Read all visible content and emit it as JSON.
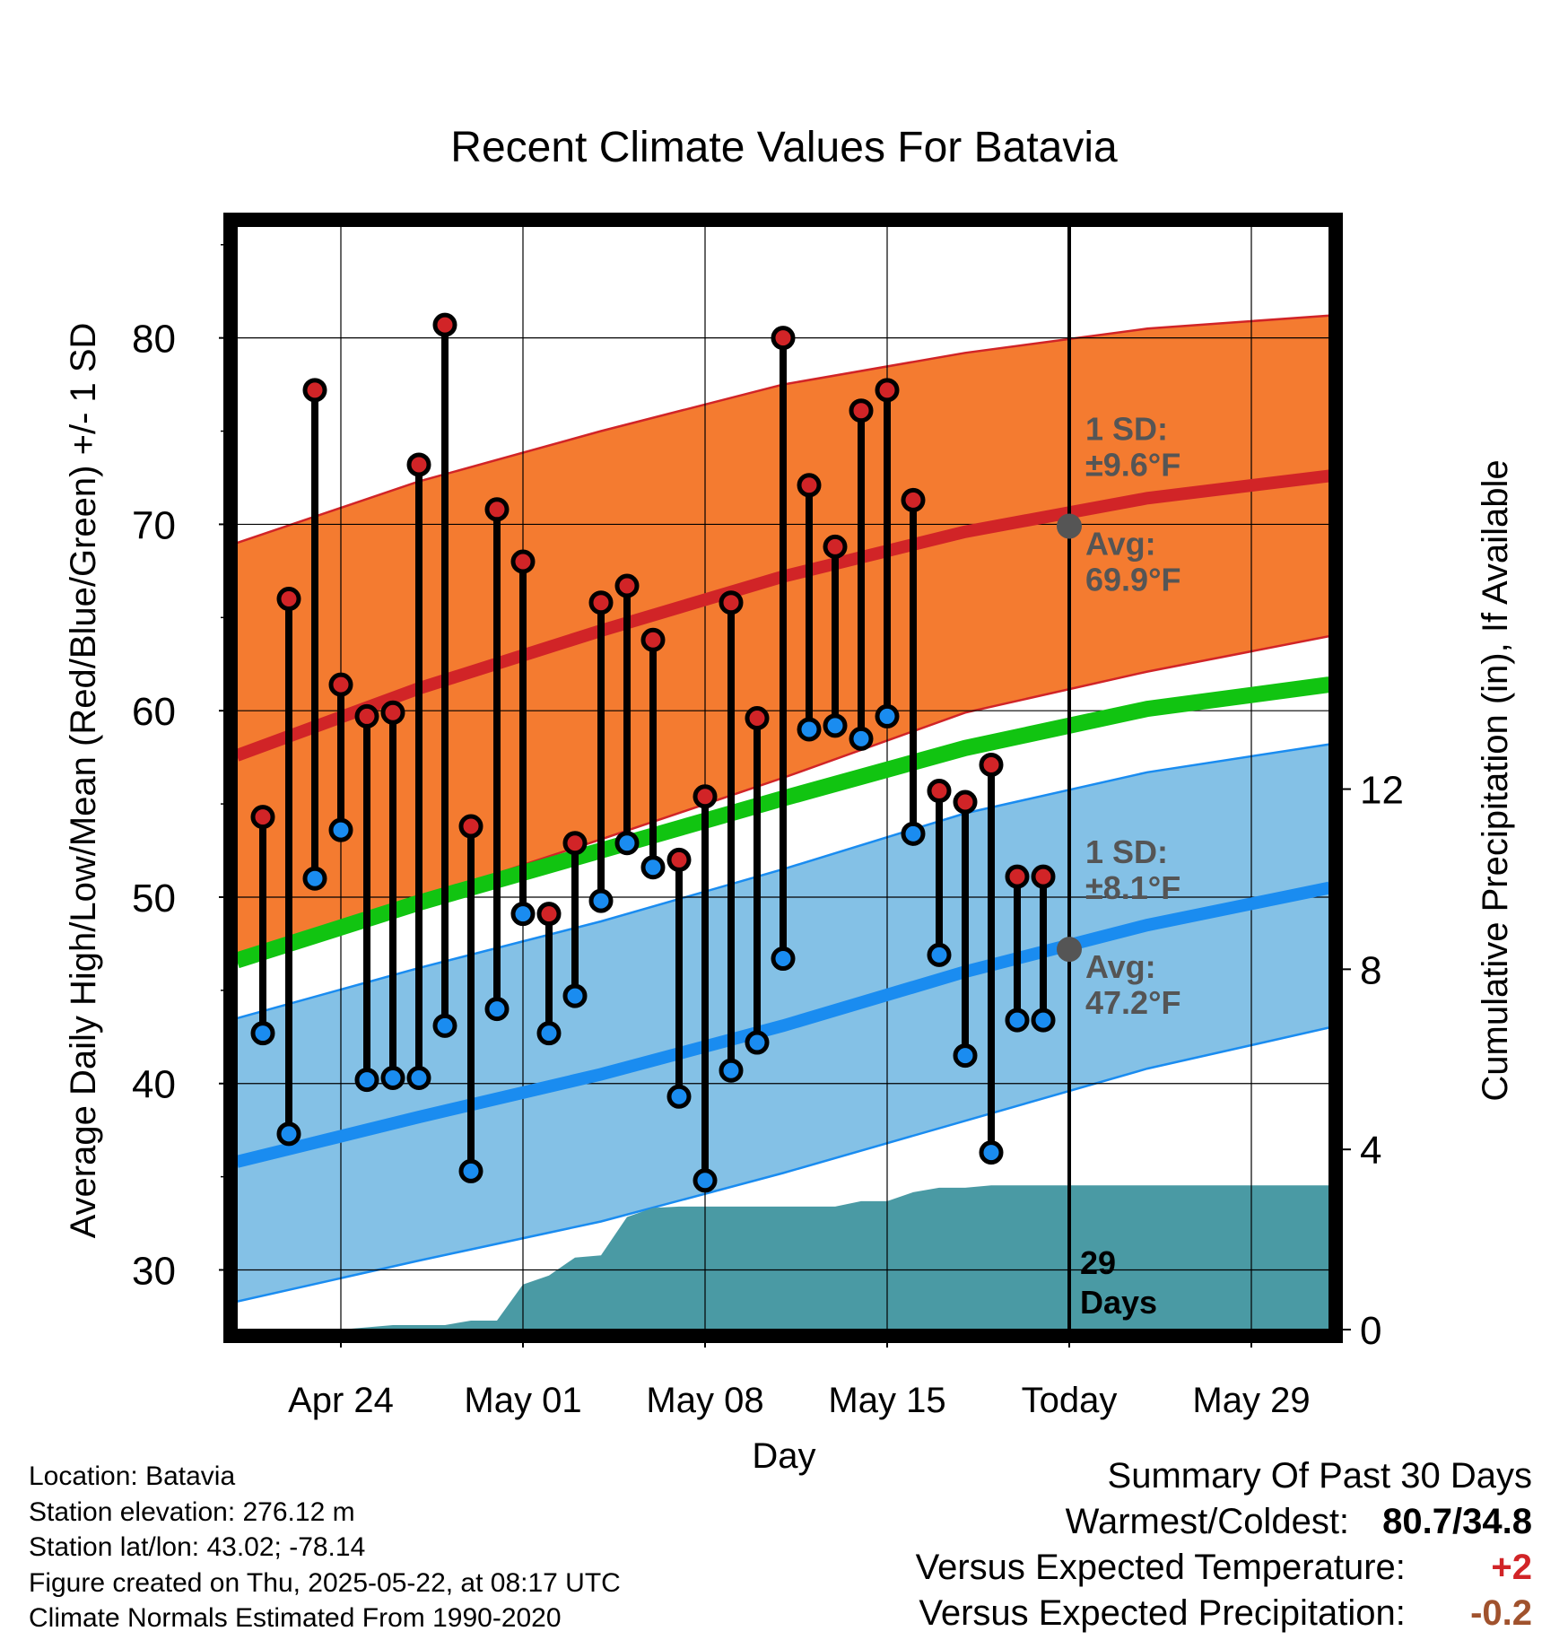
{
  "chart_data": {
    "type": "line",
    "title": "Recent Climate Values For Batavia",
    "xlabel": "Day",
    "ylabel": "Average Daily High/Low/Mean (Red/Blue/Green) +/- 1 SD",
    "y2label": "Cumulative Precipitation (in), If Available",
    "ylim": [
      26.8,
      86
    ],
    "y2lim": [
      0,
      24.5
    ],
    "y_ticks": [
      "30",
      "40",
      "50",
      "60",
      "70",
      "80"
    ],
    "y2_ticks": [
      "0",
      "4",
      "8",
      "12"
    ],
    "x_start": "2025-04-20",
    "x_end": "2025-06-01",
    "x_ticks": [
      {
        "date": "2025-04-24",
        "label": "Apr 24"
      },
      {
        "date": "2025-05-01",
        "label": "May 01"
      },
      {
        "date": "2025-05-08",
        "label": "May 08"
      },
      {
        "date": "2025-05-15",
        "label": "May 15"
      },
      {
        "date": "2025-05-22",
        "label": "Today"
      },
      {
        "date": "2025-05-29",
        "label": "May 29"
      }
    ],
    "today": "2025-05-22",
    "daily": {
      "dates": [
        "2025-04-21",
        "2025-04-22",
        "2025-04-23",
        "2025-04-24",
        "2025-04-25",
        "2025-04-26",
        "2025-04-27",
        "2025-04-28",
        "2025-04-29",
        "2025-04-30",
        "2025-05-01",
        "2025-05-02",
        "2025-05-03",
        "2025-05-04",
        "2025-05-05",
        "2025-05-06",
        "2025-05-07",
        "2025-05-08",
        "2025-05-09",
        "2025-05-10",
        "2025-05-11",
        "2025-05-12",
        "2025-05-13",
        "2025-05-14",
        "2025-05-15",
        "2025-05-16",
        "2025-05-17",
        "2025-05-18",
        "2025-05-19",
        "2025-05-20",
        "2025-05-21"
      ],
      "high": [
        54.3,
        66.0,
        77.2,
        61.4,
        59.7,
        59.9,
        73.2,
        80.7,
        53.8,
        70.8,
        68.0,
        49.1,
        52.9,
        65.8,
        66.7,
        63.8,
        52.0,
        55.4,
        65.8,
        59.6,
        80.0,
        72.1,
        68.8,
        76.1,
        77.2,
        71.3,
        55.7,
        55.1,
        57.1,
        51.1,
        51.1
      ],
      "low": [
        42.7,
        37.3,
        51.0,
        53.6,
        40.2,
        40.3,
        40.3,
        43.1,
        35.3,
        44.0,
        49.1,
        42.7,
        44.7,
        49.8,
        52.9,
        51.6,
        39.3,
        34.8,
        40.7,
        42.2,
        46.7,
        59.0,
        59.2,
        58.5,
        59.7,
        53.4,
        46.9,
        41.5,
        36.3,
        43.4,
        43.4
      ]
    },
    "normals": {
      "dates": [
        "2025-04-20",
        "2025-04-27",
        "2025-05-04",
        "2025-05-11",
        "2025-05-18",
        "2025-05-25",
        "2025-06-01"
      ],
      "avg_high": [
        57.6,
        61.2,
        64.3,
        67.2,
        69.6,
        71.4,
        72.6
      ],
      "high_upper": [
        69.0,
        72.3,
        75.0,
        77.5,
        79.2,
        80.5,
        81.2
      ],
      "high_lower": [
        46.8,
        49.9,
        53.1,
        56.4,
        59.9,
        62.1,
        64.0
      ],
      "avg_mean": [
        46.6,
        49.7,
        52.5,
        55.3,
        58.0,
        60.1,
        61.4
      ],
      "avg_low": [
        35.8,
        38.2,
        40.5,
        43.1,
        46.0,
        48.5,
        50.5
      ],
      "low_upper": [
        43.5,
        46.2,
        48.7,
        51.5,
        54.5,
        56.7,
        58.2
      ],
      "low_lower": [
        28.3,
        30.5,
        32.6,
        35.2,
        38.0,
        40.8,
        43.0
      ]
    },
    "precip": {
      "dates": [
        "2025-04-20",
        "2025-04-22",
        "2025-04-23",
        "2025-04-24",
        "2025-04-25",
        "2025-04-26",
        "2025-04-27",
        "2025-04-28",
        "2025-04-29",
        "2025-04-30",
        "2025-05-01",
        "2025-05-02",
        "2025-05-03",
        "2025-05-04",
        "2025-05-05",
        "2025-05-06",
        "2025-05-07",
        "2025-05-08",
        "2025-05-09",
        "2025-05-10",
        "2025-05-11",
        "2025-05-12",
        "2025-05-13",
        "2025-05-14",
        "2025-05-15",
        "2025-05-16",
        "2025-05-17",
        "2025-05-18",
        "2025-05-19",
        "2025-05-20",
        "2025-05-21",
        "2025-06-01"
      ],
      "cumulative": [
        0,
        0,
        0,
        0,
        0.05,
        0.1,
        0.1,
        0.1,
        0.2,
        0.2,
        1.0,
        1.2,
        1.6,
        1.65,
        2.5,
        2.7,
        2.73,
        2.73,
        2.73,
        2.73,
        2.73,
        2.73,
        2.73,
        2.85,
        2.85,
        3.05,
        3.15,
        3.15,
        3.2,
        3.2,
        3.2,
        3.2
      ]
    },
    "annotations": {
      "high_sd_label": "1 SD:",
      "high_sd_value": "±9.6°F",
      "high_avg_label": "Avg:",
      "high_avg_value": "69.9°F",
      "high_avg": 69.9,
      "low_sd_label": "1 SD:",
      "low_sd_value": "±8.1°F",
      "low_avg_label": "Avg:",
      "low_avg_value": "47.2°F",
      "low_avg": 47.2,
      "days_count": "29",
      "days_label": "Days"
    },
    "colors": {
      "high_band": "#f47b30",
      "high_line": "#d12427",
      "low_band": "#84c1e6",
      "low_line": "#1a8cf0",
      "mean_line": "#11c411",
      "precip": "#4a9aa4",
      "high_marker": "#d12427",
      "low_marker": "#1a8cf0",
      "annotation_text": "#555555"
    },
    "grid": true
  },
  "info": {
    "location": "Location: Batavia",
    "elevation": "Station elevation: 276.12 m",
    "latlon": "Station lat/lon: 43.02; -78.14",
    "created": "Figure created on Thu, 2025-05-22, at 08:17 UTC",
    "normals": "Climate Normals Estimated From 1990-2020"
  },
  "summary": {
    "title": "Summary Of Past 30 Days",
    "warmest_label": "Warmest/Coldest:",
    "warmest_value": "80.7/34.8",
    "temp_label": "Versus Expected Temperature:",
    "temp_value": "+2",
    "temp_color": "#d12427",
    "precip_label": "Versus Expected Precipitation:",
    "precip_value": "-0.2",
    "precip_color": "#a0522d"
  }
}
